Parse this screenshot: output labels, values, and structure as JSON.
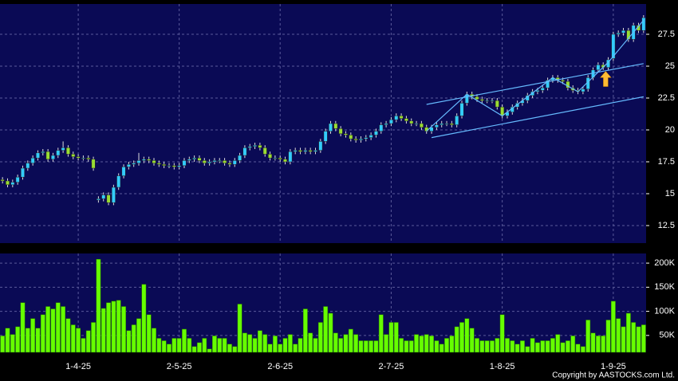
{
  "chart_data": {
    "type": "candlestick",
    "categories": [
      null,
      null,
      null,
      null,
      null,
      null,
      null,
      null,
      null,
      null,
      null,
      null,
      null,
      null,
      null,
      "1-4-25",
      null,
      null,
      null,
      null,
      null,
      null,
      null,
      null,
      null,
      null,
      null,
      null,
      null,
      null,
      null,
      null,
      null,
      null,
      null,
      "2-5-25",
      null,
      null,
      null,
      null,
      null,
      null,
      null,
      null,
      null,
      null,
      null,
      null,
      null,
      null,
      null,
      null,
      null,
      null,
      null,
      "2-6-25",
      null,
      null,
      null,
      null,
      null,
      null,
      null,
      null,
      null,
      null,
      null,
      null,
      null,
      null,
      null,
      null,
      null,
      null,
      null,
      null,
      null,
      "2-7-25",
      null,
      null,
      null,
      null,
      null,
      null,
      null,
      null,
      null,
      null,
      null,
      null,
      null,
      null,
      null,
      null,
      null,
      null,
      null,
      null,
      null,
      "1-8-25",
      null,
      null,
      null,
      null,
      null,
      null,
      null,
      null,
      null,
      null,
      null,
      null,
      null,
      null,
      null,
      null,
      null,
      null,
      null,
      null,
      null,
      "1-9-25",
      null,
      null,
      null,
      null,
      null,
      null
    ],
    "open": [
      16.1,
      16.0,
      15.7,
      15.9,
      16.3,
      17.0,
      17.4,
      17.8,
      18.2,
      18.3,
      17.7,
      18.0,
      18.4,
      18.6,
      18.1,
      17.9,
      17.8,
      17.8,
      17.7,
      14.5,
      14.6,
      14.9,
      14.3,
      15.5,
      16.4,
      17.1,
      17.3,
      17.4,
      17.6,
      17.7,
      17.6,
      17.4,
      17.3,
      17.2,
      17.2,
      17.1,
      17.2,
      17.6,
      17.7,
      17.8,
      17.6,
      17.4,
      17.5,
      17.6,
      17.6,
      17.4,
      17.3,
      17.6,
      18.0,
      18.6,
      18.7,
      18.8,
      18.6,
      18.1,
      17.8,
      17.8,
      17.7,
      17.5,
      18.3,
      18.4,
      18.3,
      18.4,
      18.3,
      18.4,
      19.1,
      19.9,
      20.5,
      20.1,
      19.7,
      19.6,
      19.3,
      19.2,
      19.3,
      19.4,
      19.6,
      19.9,
      20.4,
      20.5,
      20.8,
      21.1,
      20.9,
      20.7,
      20.5,
      20.5,
      20.2,
      19.9,
      20.2,
      20.4,
      20.5,
      20.5,
      20.4,
      21.1,
      22.1,
      22.8,
      22.6,
      22.4,
      22.3,
      22.3,
      22.3,
      21.8,
      21.1,
      21.4,
      21.8,
      22.1,
      22.3,
      22.7,
      23.0,
      23.1,
      23.3,
      23.9,
      24.1,
      23.9,
      23.8,
      23.3,
      23.1,
      23.0,
      23.2,
      24.1,
      24.7,
      25.1,
      24.9,
      25.6,
      27.5,
      27.6,
      27.8,
      27.1,
      28.2,
      27.8
    ],
    "high": [
      16.3,
      16.2,
      16.1,
      16.5,
      17.2,
      17.6,
      18.0,
      18.4,
      18.5,
      18.5,
      18.2,
      18.6,
      19.1,
      18.8,
      18.3,
      18.1,
      18.0,
      18.0,
      17.9,
      14.8,
      15.1,
      15.1,
      15.7,
      16.6,
      17.3,
      17.5,
      17.6,
      18.2,
      17.9,
      17.9,
      17.8,
      17.6,
      17.5,
      17.4,
      17.4,
      17.4,
      17.8,
      17.9,
      18.0,
      18.0,
      17.8,
      17.7,
      17.8,
      17.8,
      17.8,
      17.6,
      17.8,
      18.2,
      18.8,
      18.9,
      19.0,
      19.0,
      18.8,
      18.3,
      18.0,
      18.0,
      17.9,
      18.5,
      18.6,
      18.6,
      18.6,
      18.6,
      18.6,
      19.3,
      20.1,
      20.7,
      20.7,
      20.3,
      19.9,
      19.8,
      19.5,
      19.5,
      19.6,
      19.8,
      20.1,
      20.6,
      20.7,
      21.0,
      21.3,
      21.3,
      21.1,
      20.9,
      20.7,
      20.7,
      20.4,
      20.4,
      20.6,
      20.7,
      20.7,
      20.7,
      21.3,
      22.3,
      23.0,
      23.0,
      22.8,
      22.6,
      22.5,
      22.5,
      22.5,
      22.0,
      21.6,
      22.0,
      22.3,
      22.5,
      22.9,
      23.2,
      23.3,
      23.5,
      24.1,
      24.3,
      24.3,
      24.1,
      24.0,
      23.5,
      23.3,
      23.4,
      24.3,
      24.9,
      25.3,
      25.3,
      25.7,
      27.7,
      27.8,
      28.0,
      28.0,
      28.4,
      28.4,
      29.0
    ],
    "low": [
      15.8,
      15.5,
      15.5,
      15.7,
      16.1,
      16.8,
      17.2,
      17.6,
      18.0,
      17.5,
      17.5,
      17.8,
      18.2,
      17.9,
      17.7,
      17.6,
      17.6,
      17.5,
      16.8,
      14.3,
      14.4,
      14.1,
      14.1,
      15.3,
      16.2,
      16.9,
      17.1,
      17.2,
      17.4,
      17.4,
      17.2,
      17.1,
      17.0,
      17.0,
      16.9,
      16.9,
      17.0,
      17.4,
      17.5,
      17.4,
      17.2,
      17.2,
      17.3,
      17.4,
      17.2,
      17.1,
      17.1,
      17.4,
      17.8,
      18.4,
      18.5,
      18.4,
      17.9,
      17.6,
      17.6,
      17.5,
      17.3,
      17.3,
      18.1,
      18.1,
      18.1,
      18.1,
      18.1,
      18.2,
      18.9,
      19.7,
      19.9,
      19.5,
      19.4,
      19.1,
      19.0,
      19.0,
      19.1,
      19.2,
      19.4,
      19.7,
      20.2,
      20.3,
      20.6,
      20.7,
      20.5,
      20.3,
      20.3,
      20.0,
      19.7,
      19.7,
      20.0,
      20.2,
      20.3,
      20.2,
      20.2,
      20.9,
      21.9,
      22.4,
      22.2,
      22.1,
      22.1,
      22.1,
      21.6,
      20.9,
      20.9,
      21.2,
      21.6,
      21.9,
      22.1,
      22.5,
      22.8,
      22.9,
      23.1,
      23.7,
      23.7,
      23.6,
      23.1,
      22.9,
      22.8,
      22.8,
      23.0,
      23.9,
      24.5,
      24.7,
      24.7,
      25.4,
      27.3,
      27.4,
      26.9,
      26.9,
      27.6,
      27.6
    ],
    "close": [
      16.0,
      15.7,
      15.9,
      16.3,
      17.0,
      17.4,
      17.8,
      18.2,
      18.3,
      17.7,
      18.0,
      18.4,
      18.6,
      18.1,
      17.9,
      17.8,
      17.8,
      17.7,
      17.0,
      14.6,
      14.9,
      14.3,
      15.5,
      16.4,
      17.1,
      17.3,
      17.4,
      17.6,
      17.7,
      17.6,
      17.4,
      17.3,
      17.2,
      17.2,
      17.1,
      17.2,
      17.6,
      17.7,
      17.8,
      17.6,
      17.4,
      17.5,
      17.6,
      17.6,
      17.4,
      17.3,
      17.6,
      18.0,
      18.6,
      18.7,
      18.8,
      18.6,
      18.1,
      17.8,
      17.8,
      17.7,
      17.5,
      18.3,
      18.4,
      18.3,
      18.4,
      18.3,
      18.4,
      19.1,
      19.9,
      20.5,
      20.1,
      19.7,
      19.6,
      19.3,
      19.2,
      19.3,
      19.4,
      19.6,
      19.9,
      20.4,
      20.5,
      20.8,
      21.1,
      20.9,
      20.7,
      20.5,
      20.5,
      20.2,
      19.9,
      20.2,
      20.4,
      20.5,
      20.5,
      20.4,
      21.1,
      22.1,
      22.8,
      22.6,
      22.4,
      22.3,
      22.3,
      22.3,
      21.8,
      21.1,
      21.4,
      21.8,
      22.1,
      22.3,
      22.7,
      23.0,
      23.1,
      23.3,
      23.9,
      24.1,
      23.9,
      23.8,
      23.3,
      23.1,
      23.0,
      23.2,
      24.1,
      24.7,
      25.1,
      24.9,
      25.5,
      27.5,
      27.6,
      27.8,
      27.1,
      28.2,
      27.8,
      28.8
    ],
    "volume": [
      49000,
      65000,
      52000,
      68000,
      118000,
      65000,
      85000,
      65000,
      93000,
      110000,
      105000,
      118000,
      110000,
      85000,
      72000,
      65000,
      44000,
      60000,
      77000,
      208000,
      106000,
      118000,
      121000,
      123000,
      110000,
      60000,
      72000,
      85000,
      156000,
      93000,
      65000,
      44000,
      39000,
      32000,
      44000,
      44000,
      63000,
      44000,
      27000,
      35000,
      44000,
      22000,
      49000,
      44000,
      44000,
      32000,
      27000,
      115000,
      55000,
      52000,
      44000,
      60000,
      52000,
      32000,
      49000,
      32000,
      44000,
      52000,
      32000,
      44000,
      105000,
      55000,
      44000,
      77000,
      110000,
      96000,
      55000,
      44000,
      52000,
      63000,
      52000,
      39000,
      39000,
      39000,
      39000,
      93000,
      52000,
      77000,
      77000,
      44000,
      39000,
      39000,
      52000,
      49000,
      52000,
      49000,
      39000,
      32000,
      44000,
      49000,
      68000,
      77000,
      85000,
      65000,
      44000,
      39000,
      39000,
      39000,
      44000,
      93000,
      44000,
      39000,
      32000,
      39000,
      27000,
      44000,
      35000,
      39000,
      39000,
      44000,
      52000,
      35000,
      39000,
      49000,
      32000,
      27000,
      82000,
      55000,
      49000,
      49000,
      82000,
      121000,
      85000,
      68000,
      96000,
      77000,
      68000,
      72000
    ],
    "up_color": "#33ccff",
    "down_color": "#99dd33",
    "volume_color": "#66ff00",
    "ylim": [
      11.125,
      29.875
    ],
    "yticks": [
      12.5,
      15,
      17.5,
      20,
      22.5,
      25,
      27.5
    ],
    "y2lim": [
      15000,
      220000
    ],
    "y2ticks": [
      {
        "value": 50000,
        "label": "50K"
      },
      {
        "value": 100000,
        "label": "100K"
      },
      {
        "value": 150000,
        "label": "150K"
      },
      {
        "value": 200000,
        "label": "200K"
      }
    ],
    "grid": true,
    "trend_lines": [
      {
        "color": "#66bbff",
        "x": [
          84,
          127
        ],
        "y": [
          22.0,
          25.2
        ]
      },
      {
        "color": "#66bbff",
        "x": [
          85,
          127
        ],
        "y": [
          19.4,
          22.6
        ]
      },
      {
        "color": "#66bbff",
        "x": [
          84,
          92,
          99,
          109,
          114,
          120,
          127
        ],
        "y": [
          19.9,
          22.8,
          21.1,
          24.1,
          23.0,
          25.3,
          28.6
        ]
      }
    ],
    "arrow": {
      "color": "#ffbb33",
      "x": 119.5,
      "y": [
        23.4,
        24.6
      ]
    },
    "copyright": "Copyright by AASTOCKS.com Ltd."
  }
}
